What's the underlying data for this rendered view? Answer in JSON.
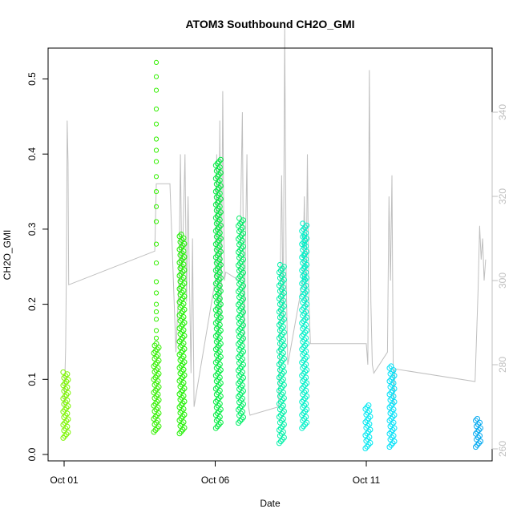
{
  "chart_data": {
    "type": "scatter",
    "title": "ATOM3 Southbound CH2O_GMI",
    "xlabel": "Date",
    "ylabel": "CH2O_GMI",
    "x_ticks": [
      "Oct 01",
      "Oct 06",
      "Oct 11"
    ],
    "xlim": [
      0,
      14
    ],
    "ylim": [
      0,
      0.54
    ],
    "y_ticks": [
      0.0,
      0.1,
      0.2,
      0.3,
      0.4,
      0.5
    ],
    "y2_ticks": [
      260,
      280,
      300,
      320,
      340
    ],
    "y2_lim": [
      258.5,
      362
    ],
    "y2_color": "#bfbfbf",
    "marker": "open-circle",
    "series": [
      {
        "color": "#7cf500",
        "x": 0.05,
        "ymin": 0.022,
        "ymax": 0.11,
        "sparse": []
      },
      {
        "color": "#33f000",
        "x": 3.05,
        "ymin": 0.03,
        "ymax": 0.15,
        "sparse": [
          0.155,
          0.165,
          0.18,
          0.19,
          0.2,
          0.215,
          0.23,
          0.255,
          0.28,
          0.31,
          0.33,
          0.35,
          0.37,
          0.39,
          0.405,
          0.42,
          0.44,
          0.46,
          0.485,
          0.503,
          0.522
        ]
      },
      {
        "color": "#1ef000",
        "x": 3.9,
        "ymin": 0.028,
        "ymax": 0.295,
        "sparse": []
      },
      {
        "color": "#00ed40",
        "x": 5.1,
        "ymin": 0.035,
        "ymax": 0.395,
        "sparse": []
      },
      {
        "color": "#00ee66",
        "x": 5.85,
        "ymin": 0.042,
        "ymax": 0.315,
        "sparse": []
      },
      {
        "color": "#00f0a8",
        "x": 7.2,
        "ymin": 0.015,
        "ymax": 0.255,
        "sparse": []
      },
      {
        "color": "#00f0c8",
        "x": 7.95,
        "ymin": 0.035,
        "ymax": 0.31,
        "sparse": [
          0.235,
          0.25,
          0.265,
          0.28,
          0.29
        ]
      },
      {
        "color": "#00e8f0",
        "x": 10.05,
        "ymin": 0.008,
        "ymax": 0.068,
        "sparse": []
      },
      {
        "color": "#00e0f8",
        "x": 10.85,
        "ymin": 0.01,
        "ymax": 0.12,
        "sparse": []
      },
      {
        "color": "#00a8f0",
        "x": 13.7,
        "ymin": 0.01,
        "ymax": 0.05,
        "sparse": []
      }
    ],
    "y2_line": [
      [
        0,
        270
      ],
      [
        0.05,
        284
      ],
      [
        0.08,
        306
      ],
      [
        0.1,
        338
      ],
      [
        0.13,
        328
      ],
      [
        0.15,
        299
      ],
      [
        3.0,
        307
      ],
      [
        3.05,
        323
      ],
      [
        3.1,
        323
      ],
      [
        3.5,
        323
      ],
      [
        3.7,
        283
      ],
      [
        3.8,
        300
      ],
      [
        3.85,
        330
      ],
      [
        3.9,
        300
      ],
      [
        4.0,
        330
      ],
      [
        4.05,
        295
      ],
      [
        4.1,
        320
      ],
      [
        4.2,
        278
      ],
      [
        4.25,
        310
      ],
      [
        4.3,
        270
      ],
      [
        5.0,
        300
      ],
      [
        5.05,
        330
      ],
      [
        5.1,
        280
      ],
      [
        5.15,
        338
      ],
      [
        5.2,
        290
      ],
      [
        5.25,
        345
      ],
      [
        5.3,
        300
      ],
      [
        5.35,
        302
      ],
      [
        5.8,
        300
      ],
      [
        5.9,
        340
      ],
      [
        5.95,
        285
      ],
      [
        6.05,
        330
      ],
      [
        6.1,
        270
      ],
      [
        6.15,
        268
      ],
      [
        7.1,
        270
      ],
      [
        7.15,
        300
      ],
      [
        7.2,
        325
      ],
      [
        7.25,
        290
      ],
      [
        7.3,
        360
      ],
      [
        7.35,
        300
      ],
      [
        7.4,
        280
      ],
      [
        7.9,
        300
      ],
      [
        7.95,
        320
      ],
      [
        8.0,
        290
      ],
      [
        8.05,
        330
      ],
      [
        8.1,
        295
      ],
      [
        8.15,
        285
      ],
      [
        10.0,
        285
      ],
      [
        10.05,
        280
      ],
      [
        10.1,
        350
      ],
      [
        10.15,
        295
      ],
      [
        10.2,
        280
      ],
      [
        10.25,
        278
      ],
      [
        10.7,
        283
      ],
      [
        10.75,
        320
      ],
      [
        10.8,
        300
      ],
      [
        10.85,
        325
      ],
      [
        10.9,
        270
      ],
      [
        10.95,
        279
      ],
      [
        13.6,
        276
      ],
      [
        13.7,
        298
      ],
      [
        13.75,
        313
      ],
      [
        13.8,
        305
      ],
      [
        13.85,
        310
      ],
      [
        13.9,
        300
      ],
      [
        13.95,
        305
      ]
    ]
  }
}
